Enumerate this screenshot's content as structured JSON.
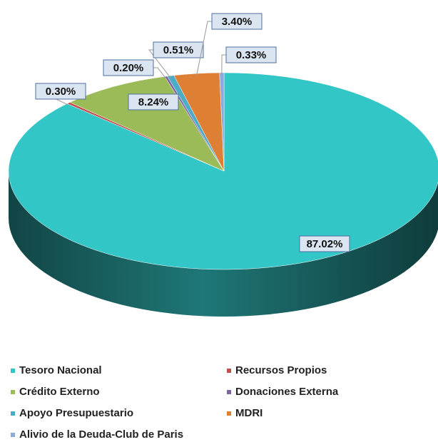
{
  "chart_data": {
    "type": "pie3d",
    "categories": [
      "Tesoro Nacional",
      "Recursos Propios",
      "Crédito Externo",
      "Donaciones Externa",
      "Apoyo Presupuestario",
      "MDRI",
      "Alivio de la Deuda-Club de Paris"
    ],
    "values": [
      87.02,
      0.3,
      8.24,
      0.2,
      0.51,
      3.4,
      0.33
    ],
    "value_labels": [
      "87.02%",
      "0.30%",
      "8.24%",
      "0.20%",
      "0.51%",
      "3.40%",
      "0.33%"
    ],
    "colors": [
      "#33c6c6",
      "#c0504d",
      "#9bbb59",
      "#8064a2",
      "#4bacc6",
      "#dd7f35",
      "#8ea9db"
    ],
    "legend": "bottom"
  }
}
